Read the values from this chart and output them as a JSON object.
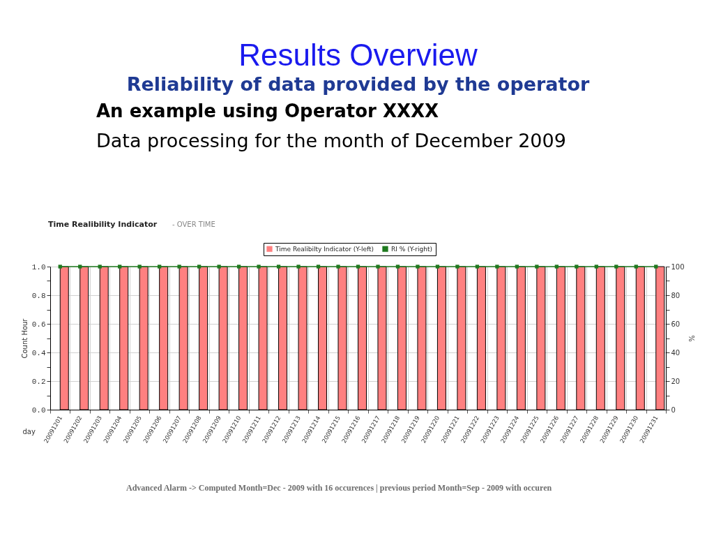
{
  "chart_data": {
    "type": "bar",
    "title": "Results Overview",
    "subtitle": "Reliability of data provided by the operator",
    "annotations": [
      "An example using Operator XXXX",
      "Data processing for the month of December 2009",
      "Time Realibility Indicator",
      "- OVER TIME",
      "Advanced Alarm -> Computed Month=Dec - 2009 with 16 occurences | previous period Month=Sep - 2009 with occuren"
    ],
    "xlabel": "day",
    "ylabel": "Count Hour",
    "y2label": "%",
    "categories": [
      "20091201",
      "20091202",
      "20091203",
      "20091204",
      "20091205",
      "20091206",
      "20091207",
      "20091208",
      "20091209",
      "20091210",
      "20091211",
      "20091212",
      "20091213",
      "20091214",
      "20091215",
      "20091216",
      "20091217",
      "20091218",
      "20091219",
      "20091220",
      "20091221",
      "20091222",
      "20091223",
      "20091224",
      "20091225",
      "20091226",
      "20091227",
      "20091228",
      "20091229",
      "20091230",
      "20091231"
    ],
    "series": [
      {
        "name": "Time Realibilty Indicator (Y-left)",
        "color": "#ff8080",
        "values": [
          1,
          1,
          1,
          1,
          1,
          1,
          1,
          1,
          1,
          1,
          1,
          1,
          1,
          1,
          1,
          1,
          1,
          1,
          1,
          1,
          1,
          1,
          1,
          1,
          1,
          1,
          1,
          1,
          1,
          1,
          1
        ]
      },
      {
        "name": "RI % (Y-right)",
        "type": "line",
        "axis": "y2",
        "color": "#1f7a1f",
        "values": [
          100,
          100,
          100,
          100,
          100,
          100,
          100,
          100,
          100,
          100,
          100,
          100,
          100,
          100,
          100,
          100,
          100,
          100,
          100,
          100,
          100,
          100,
          100,
          100,
          100,
          100,
          100,
          100,
          100,
          100,
          100
        ]
      }
    ],
    "ylim": [
      0,
      1
    ],
    "yticks": [
      {
        "value": 0,
        "label": "0.0"
      },
      {
        "value": 0.1,
        "label": null
      },
      {
        "value": 0.2,
        "label": "0.2"
      },
      {
        "value": 0.3,
        "label": null
      },
      {
        "value": 0.4,
        "label": "0.4"
      },
      {
        "value": 0.5,
        "label": null
      },
      {
        "value": 0.6,
        "label": "0.6"
      },
      {
        "value": 0.7,
        "label": null
      },
      {
        "value": 0.8,
        "label": "0.8"
      },
      {
        "value": 0.9,
        "label": null
      },
      {
        "value": 1,
        "label": "1.0"
      }
    ],
    "y2lim": [
      0,
      100
    ],
    "y2ticks": [
      0,
      {
        "value": 10,
        "label": null
      },
      20,
      {
        "value": 30,
        "label": null
      },
      40,
      {
        "value": 50,
        "label": null
      },
      60,
      {
        "value": 70,
        "label": null
      },
      80,
      {
        "value": 90,
        "label": null
      },
      100
    ],
    "grid": true,
    "legend": "top",
    "marker": "square",
    "line_style": "solid"
  }
}
